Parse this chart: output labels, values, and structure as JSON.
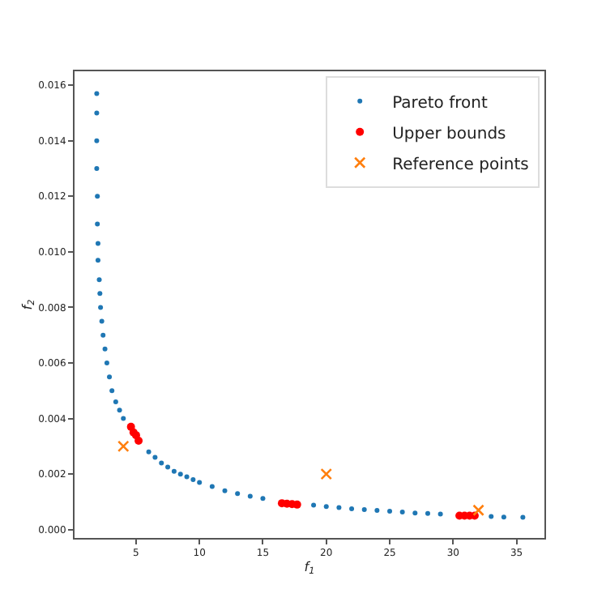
{
  "chart_data": {
    "type": "scatter",
    "xlabel": "f$_{1}$",
    "ylabel": "f$_{2}$",
    "series": [
      {
        "name": "Pareto front",
        "color": "#1f77b4",
        "marker": "circle",
        "x": [
          1.9,
          1.9,
          1.9,
          1.9,
          1.95,
          1.95,
          2.0,
          2.0,
          2.1,
          2.15,
          2.2,
          2.3,
          2.4,
          2.55,
          2.7,
          2.9,
          3.1,
          3.4,
          3.7,
          4.0,
          6,
          6.5,
          7,
          7.5,
          8,
          8.5,
          9,
          9.5,
          10,
          11,
          12,
          13,
          14,
          15,
          19,
          20,
          21,
          22,
          23,
          24,
          25,
          26,
          27,
          28,
          29,
          33,
          34,
          35.5
        ],
        "values": [
          0.0157,
          0.015,
          0.014,
          0.013,
          0.012,
          0.011,
          0.0103,
          0.0097,
          0.009,
          0.0085,
          0.008,
          0.0075,
          0.007,
          0.0065,
          0.006,
          0.0055,
          0.005,
          0.0046,
          0.0043,
          0.004,
          0.0028,
          0.0026,
          0.0024,
          0.00225,
          0.0021,
          0.002,
          0.0019,
          0.0018,
          0.0017,
          0.00155,
          0.0014,
          0.0013,
          0.0012,
          0.00112,
          0.00088,
          0.00083,
          0.00079,
          0.00075,
          0.00072,
          0.00069,
          0.00066,
          0.00063,
          0.0006,
          0.00058,
          0.00056,
          0.00047,
          0.00045,
          0.00044
        ]
      },
      {
        "name": "Upper bounds",
        "color": "#ff0000",
        "marker": "circle",
        "x": [
          4.6,
          4.8,
          5.0,
          5.2,
          16.5,
          16.9,
          17.3,
          17.7,
          30.5,
          30.9,
          31.3,
          31.7
        ],
        "values": [
          0.0037,
          0.0035,
          0.0034,
          0.0032,
          0.00095,
          0.00093,
          0.00092,
          0.0009,
          0.0005,
          0.0005,
          0.0005,
          0.0005
        ]
      },
      {
        "name": "Reference points",
        "color": "#ff7f0e",
        "marker": "cross",
        "x": [
          4,
          20,
          32
        ],
        "values": [
          0.003,
          0.002,
          0.0007
        ]
      }
    ],
    "xlim": [
      0.15,
      37.2
    ],
    "ylim": [
      -0.0003,
      0.0165
    ],
    "xticks": [
      5,
      10,
      15,
      20,
      25,
      30,
      35
    ],
    "yticks": [
      {
        "value": 0,
        "label": "0.000"
      },
      {
        "value": 0.002,
        "label": "0.002"
      },
      {
        "value": 0.004,
        "label": "0.004"
      },
      {
        "value": 0.006,
        "label": "0.006"
      },
      {
        "value": 0.008,
        "label": "0.008"
      },
      {
        "value": 0.01,
        "label": "0.010"
      },
      {
        "value": 0.012,
        "label": "0.012"
      },
      {
        "value": 0.014,
        "label": "0.014"
      },
      {
        "value": 0.016,
        "label": "0.016"
      }
    ],
    "legend": "top right",
    "grid": false
  }
}
